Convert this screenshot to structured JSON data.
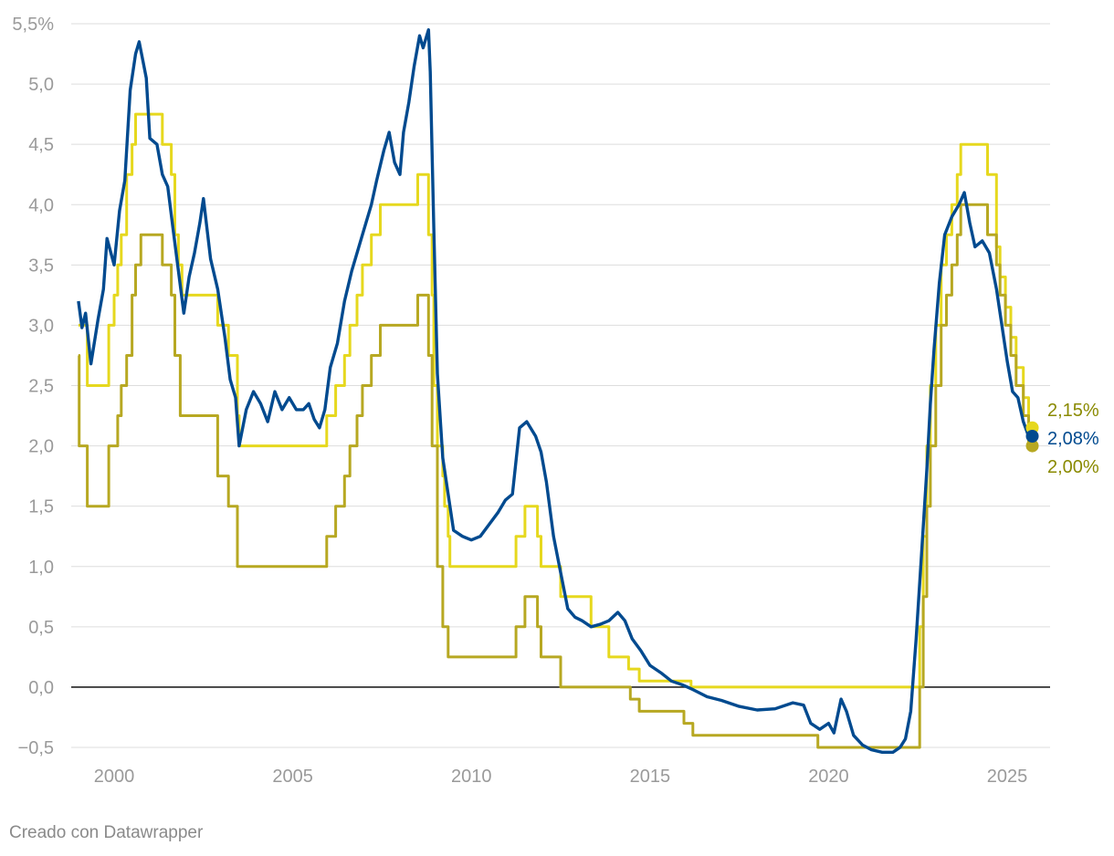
{
  "chart_data": {
    "type": "line",
    "title": "",
    "xlabel": "",
    "ylabel": "",
    "xlim": [
      1998.85,
      2026.2
    ],
    "ylim": [
      -0.5,
      5.5
    ],
    "grid": true,
    "y_ticks": [
      {
        "value": 5.5,
        "label": "5,5%"
      },
      {
        "value": 5.0,
        "label": "5,0"
      },
      {
        "value": 4.5,
        "label": "4,5"
      },
      {
        "value": 4.0,
        "label": "4,0"
      },
      {
        "value": 3.5,
        "label": "3,5"
      },
      {
        "value": 3.0,
        "label": "3,0"
      },
      {
        "value": 2.5,
        "label": "2,5"
      },
      {
        "value": 2.0,
        "label": "2,0"
      },
      {
        "value": 1.5,
        "label": "1,5"
      },
      {
        "value": 1.0,
        "label": "1,0"
      },
      {
        "value": 0.5,
        "label": "0,5"
      },
      {
        "value": 0.0,
        "label": "0,0"
      },
      {
        "value": -0.5,
        "label": "−0,5"
      }
    ],
    "x_ticks": [
      {
        "value": 2000,
        "label": "2000"
      },
      {
        "value": 2005,
        "label": "2005"
      },
      {
        "value": 2010,
        "label": "2010"
      },
      {
        "value": 2015,
        "label": "2015"
      },
      {
        "value": 2020,
        "label": "2020"
      },
      {
        "value": 2025,
        "label": "2025"
      }
    ],
    "series": [
      {
        "color": "#e6d81e",
        "kind": "step",
        "end_label": "2,15%",
        "end_label_color": "#8a8a00",
        "points": [
          [
            1999.0,
            3.0
          ],
          [
            1999.25,
            2.5
          ],
          [
            1999.85,
            3.0
          ],
          [
            2000.0,
            3.25
          ],
          [
            2000.1,
            3.5
          ],
          [
            2000.2,
            3.75
          ],
          [
            2000.35,
            4.25
          ],
          [
            2000.5,
            4.5
          ],
          [
            2000.6,
            4.75
          ],
          [
            2001.35,
            4.5
          ],
          [
            2001.6,
            4.25
          ],
          [
            2001.7,
            3.75
          ],
          [
            2001.8,
            3.5
          ],
          [
            2001.9,
            3.25
          ],
          [
            2002.9,
            3.0
          ],
          [
            2003.2,
            2.75
          ],
          [
            2003.45,
            2.25
          ],
          [
            2003.5,
            2.0
          ],
          [
            2005.95,
            2.25
          ],
          [
            2006.2,
            2.5
          ],
          [
            2006.45,
            2.75
          ],
          [
            2006.6,
            3.0
          ],
          [
            2006.8,
            3.25
          ],
          [
            2006.95,
            3.5
          ],
          [
            2007.2,
            3.75
          ],
          [
            2007.45,
            4.0
          ],
          [
            2008.5,
            4.25
          ],
          [
            2008.8,
            3.75
          ],
          [
            2008.9,
            3.25
          ],
          [
            2008.95,
            2.5
          ],
          [
            2009.05,
            2.0
          ],
          [
            2009.2,
            1.75
          ],
          [
            2009.25,
            1.5
          ],
          [
            2009.35,
            1.25
          ],
          [
            2009.4,
            1.0
          ],
          [
            2011.25,
            1.25
          ],
          [
            2011.5,
            1.5
          ],
          [
            2011.85,
            1.25
          ],
          [
            2011.95,
            1.0
          ],
          [
            2012.5,
            0.75
          ],
          [
            2013.35,
            0.5
          ],
          [
            2013.85,
            0.25
          ],
          [
            2014.4,
            0.15
          ],
          [
            2014.7,
            0.05
          ],
          [
            2016.15,
            0.0
          ],
          [
            2022.55,
            0.5
          ],
          [
            2022.65,
            1.25
          ],
          [
            2022.75,
            2.0
          ],
          [
            2022.85,
            2.5
          ],
          [
            2023.0,
            3.0
          ],
          [
            2023.15,
            3.5
          ],
          [
            2023.3,
            3.75
          ],
          [
            2023.45,
            4.0
          ],
          [
            2023.6,
            4.25
          ],
          [
            2023.7,
            4.5
          ],
          [
            2024.45,
            4.25
          ],
          [
            2024.7,
            3.65
          ],
          [
            2024.8,
            3.4
          ],
          [
            2024.95,
            3.15
          ],
          [
            2025.1,
            2.9
          ],
          [
            2025.25,
            2.65
          ],
          [
            2025.45,
            2.4
          ],
          [
            2025.6,
            2.15
          ]
        ]
      },
      {
        "color": "#b7a822",
        "kind": "step",
        "end_label": "2,00%",
        "end_label_color": "#8a8a00",
        "points": [
          [
            1999.0,
            2.75
          ],
          [
            1999.02,
            2.0
          ],
          [
            1999.25,
            1.5
          ],
          [
            1999.85,
            2.0
          ],
          [
            2000.1,
            2.25
          ],
          [
            2000.2,
            2.5
          ],
          [
            2000.35,
            2.75
          ],
          [
            2000.5,
            3.25
          ],
          [
            2000.6,
            3.5
          ],
          [
            2000.75,
            3.75
          ],
          [
            2001.35,
            3.5
          ],
          [
            2001.6,
            3.25
          ],
          [
            2001.7,
            2.75
          ],
          [
            2001.85,
            2.25
          ],
          [
            2002.9,
            1.75
          ],
          [
            2003.2,
            1.5
          ],
          [
            2003.45,
            1.0
          ],
          [
            2005.95,
            1.25
          ],
          [
            2006.2,
            1.5
          ],
          [
            2006.45,
            1.75
          ],
          [
            2006.6,
            2.0
          ],
          [
            2006.8,
            2.25
          ],
          [
            2006.95,
            2.5
          ],
          [
            2007.2,
            2.75
          ],
          [
            2007.45,
            3.0
          ],
          [
            2008.5,
            3.25
          ],
          [
            2008.8,
            2.75
          ],
          [
            2008.9,
            2.0
          ],
          [
            2009.05,
            1.0
          ],
          [
            2009.2,
            0.5
          ],
          [
            2009.35,
            0.25
          ],
          [
            2011.25,
            0.5
          ],
          [
            2011.5,
            0.75
          ],
          [
            2011.85,
            0.5
          ],
          [
            2011.95,
            0.25
          ],
          [
            2012.5,
            0.0
          ],
          [
            2014.45,
            -0.1
          ],
          [
            2014.7,
            -0.2
          ],
          [
            2015.95,
            -0.3
          ],
          [
            2016.2,
            -0.4
          ],
          [
            2019.7,
            -0.5
          ],
          [
            2022.55,
            0.0
          ],
          [
            2022.65,
            0.75
          ],
          [
            2022.75,
            1.5
          ],
          [
            2022.85,
            2.0
          ],
          [
            2023.0,
            2.5
          ],
          [
            2023.15,
            3.0
          ],
          [
            2023.3,
            3.25
          ],
          [
            2023.45,
            3.5
          ],
          [
            2023.6,
            3.75
          ],
          [
            2023.7,
            4.0
          ],
          [
            2024.45,
            3.75
          ],
          [
            2024.7,
            3.5
          ],
          [
            2024.8,
            3.25
          ],
          [
            2024.95,
            3.0
          ],
          [
            2025.1,
            2.75
          ],
          [
            2025.25,
            2.5
          ],
          [
            2025.45,
            2.25
          ],
          [
            2025.6,
            2.0
          ]
        ]
      },
      {
        "color": "#004a8f",
        "kind": "line",
        "end_label": "2,08%",
        "end_label_color": "#004a8f",
        "points": [
          [
            1999.0,
            3.2
          ],
          [
            1999.1,
            2.98
          ],
          [
            1999.2,
            3.1
          ],
          [
            1999.35,
            2.68
          ],
          [
            1999.55,
            3.05
          ],
          [
            1999.7,
            3.3
          ],
          [
            1999.8,
            3.72
          ],
          [
            2000.0,
            3.5
          ],
          [
            2000.15,
            3.95
          ],
          [
            2000.3,
            4.2
          ],
          [
            2000.45,
            4.95
          ],
          [
            2000.6,
            5.25
          ],
          [
            2000.7,
            5.35
          ],
          [
            2000.8,
            5.2
          ],
          [
            2000.9,
            5.05
          ],
          [
            2001.0,
            4.55
          ],
          [
            2001.2,
            4.5
          ],
          [
            2001.35,
            4.25
          ],
          [
            2001.5,
            4.15
          ],
          [
            2001.65,
            3.8
          ],
          [
            2001.8,
            3.45
          ],
          [
            2001.95,
            3.1
          ],
          [
            2002.1,
            3.4
          ],
          [
            2002.25,
            3.6
          ],
          [
            2002.4,
            3.85
          ],
          [
            2002.5,
            4.05
          ],
          [
            2002.7,
            3.55
          ],
          [
            2002.9,
            3.3
          ],
          [
            2003.1,
            2.9
          ],
          [
            2003.25,
            2.55
          ],
          [
            2003.4,
            2.4
          ],
          [
            2003.5,
            2.0
          ],
          [
            2003.7,
            2.3
          ],
          [
            2003.9,
            2.45
          ],
          [
            2004.1,
            2.35
          ],
          [
            2004.3,
            2.2
          ],
          [
            2004.5,
            2.45
          ],
          [
            2004.7,
            2.3
          ],
          [
            2004.9,
            2.4
          ],
          [
            2005.1,
            2.3
          ],
          [
            2005.3,
            2.3
          ],
          [
            2005.45,
            2.35
          ],
          [
            2005.6,
            2.22
          ],
          [
            2005.75,
            2.15
          ],
          [
            2005.9,
            2.3
          ],
          [
            2006.05,
            2.65
          ],
          [
            2006.25,
            2.85
          ],
          [
            2006.45,
            3.2
          ],
          [
            2006.65,
            3.45
          ],
          [
            2006.85,
            3.65
          ],
          [
            2007.05,
            3.85
          ],
          [
            2007.2,
            4.0
          ],
          [
            2007.35,
            4.2
          ],
          [
            2007.55,
            4.45
          ],
          [
            2007.7,
            4.6
          ],
          [
            2007.85,
            4.35
          ],
          [
            2008.0,
            4.25
          ],
          [
            2008.1,
            4.6
          ],
          [
            2008.25,
            4.85
          ],
          [
            2008.4,
            5.15
          ],
          [
            2008.55,
            5.4
          ],
          [
            2008.65,
            5.3
          ],
          [
            2008.8,
            5.45
          ],
          [
            2008.85,
            5.1
          ],
          [
            2008.95,
            3.8
          ],
          [
            2009.05,
            2.6
          ],
          [
            2009.2,
            1.9
          ],
          [
            2009.35,
            1.6
          ],
          [
            2009.5,
            1.3
          ],
          [
            2009.75,
            1.25
          ],
          [
            2010.0,
            1.22
          ],
          [
            2010.25,
            1.25
          ],
          [
            2010.5,
            1.35
          ],
          [
            2010.75,
            1.45
          ],
          [
            2010.95,
            1.55
          ],
          [
            2011.15,
            1.6
          ],
          [
            2011.35,
            2.15
          ],
          [
            2011.55,
            2.2
          ],
          [
            2011.8,
            2.08
          ],
          [
            2011.95,
            1.95
          ],
          [
            2012.1,
            1.7
          ],
          [
            2012.3,
            1.25
          ],
          [
            2012.5,
            0.95
          ],
          [
            2012.7,
            0.65
          ],
          [
            2012.9,
            0.58
          ],
          [
            2013.1,
            0.55
          ],
          [
            2013.35,
            0.5
          ],
          [
            2013.6,
            0.52
          ],
          [
            2013.85,
            0.55
          ],
          [
            2014.1,
            0.62
          ],
          [
            2014.3,
            0.55
          ],
          [
            2014.5,
            0.4
          ],
          [
            2014.75,
            0.3
          ],
          [
            2015.0,
            0.18
          ],
          [
            2015.3,
            0.12
          ],
          [
            2015.6,
            0.05
          ],
          [
            2015.9,
            0.02
          ],
          [
            2016.2,
            -0.02
          ],
          [
            2016.6,
            -0.08
          ],
          [
            2017.0,
            -0.11
          ],
          [
            2017.5,
            -0.16
          ],
          [
            2018.0,
            -0.19
          ],
          [
            2018.5,
            -0.18
          ],
          [
            2019.0,
            -0.13
          ],
          [
            2019.3,
            -0.15
          ],
          [
            2019.5,
            -0.3
          ],
          [
            2019.75,
            -0.35
          ],
          [
            2020.0,
            -0.3
          ],
          [
            2020.15,
            -0.38
          ],
          [
            2020.35,
            -0.1
          ],
          [
            2020.5,
            -0.2
          ],
          [
            2020.7,
            -0.4
          ],
          [
            2020.95,
            -0.48
          ],
          [
            2021.2,
            -0.52
          ],
          [
            2021.5,
            -0.54
          ],
          [
            2021.8,
            -0.54
          ],
          [
            2022.0,
            -0.5
          ],
          [
            2022.15,
            -0.43
          ],
          [
            2022.3,
            -0.2
          ],
          [
            2022.45,
            0.4
          ],
          [
            2022.6,
            1.1
          ],
          [
            2022.75,
            1.8
          ],
          [
            2022.85,
            2.35
          ],
          [
            2022.95,
            2.8
          ],
          [
            2023.1,
            3.35
          ],
          [
            2023.25,
            3.75
          ],
          [
            2023.45,
            3.9
          ],
          [
            2023.65,
            4.0
          ],
          [
            2023.8,
            4.1
          ],
          [
            2023.95,
            3.85
          ],
          [
            2024.1,
            3.65
          ],
          [
            2024.3,
            3.7
          ],
          [
            2024.5,
            3.6
          ],
          [
            2024.7,
            3.3
          ],
          [
            2024.85,
            3.0
          ],
          [
            2025.0,
            2.7
          ],
          [
            2025.15,
            2.45
          ],
          [
            2025.3,
            2.4
          ],
          [
            2025.45,
            2.2
          ],
          [
            2025.6,
            2.08
          ]
        ]
      }
    ]
  },
  "footer": {
    "credit": "Creado con Datawrapper"
  }
}
